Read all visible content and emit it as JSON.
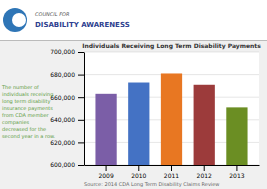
{
  "chart_data": {
    "type": "bar",
    "title": "Individuals Receiving Long Term Disability Payments",
    "categories": [
      "2009",
      "2010",
      "2011",
      "2012",
      "2013"
    ],
    "values": [
      663000,
      673000,
      681000,
      671000,
      651000
    ],
    "colors": [
      "#7B5EA7",
      "#4472C4",
      "#E87722",
      "#9C3B3B",
      "#6B8E23"
    ],
    "ylim": [
      600000,
      700000
    ],
    "yticks": [
      {
        "value": 600000,
        "label": "600,000"
      },
      {
        "value": 620000,
        "label": "620,000"
      },
      {
        "value": 640000,
        "label": "640,000"
      },
      {
        "value": 660000,
        "label": "660,000"
      },
      {
        "value": 680000,
        "label": "680,000"
      },
      {
        "value": 700000,
        "label": "700,000"
      }
    ],
    "grid": true,
    "annotations": [
      "The number of\nindividuals receiving\nlong term disability\ninsurance payments\nfrom CDA member\ncompanies\ndecreased for the\nsecond year in a row.",
      "Source: 2014 CDA Long Term Disability Claims Review",
      "COUNCIL FOR",
      "DISABILITY AWARENESS"
    ]
  }
}
